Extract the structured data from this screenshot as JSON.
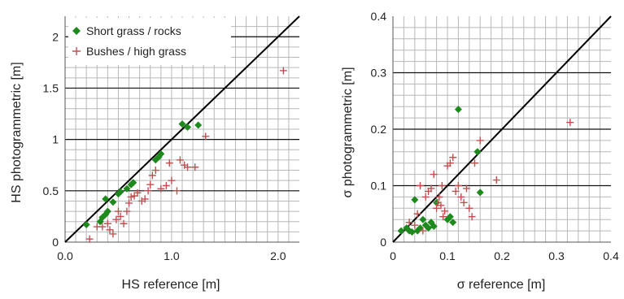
{
  "colors": {
    "short_grass": "#1e8a1e",
    "bushes": "#c05050",
    "minor_grid": "#b8b8b8",
    "major_grid": "#111111",
    "identity_line": "#000000"
  },
  "chart_data": [
    {
      "type": "scatter",
      "title": "",
      "xlabel": "HS reference [m]",
      "ylabel": "HS photogrammetric [m]",
      "xlim": [
        0,
        2.2
      ],
      "ylim": [
        0,
        2.2
      ],
      "x_ticks": [
        0,
        1,
        2
      ],
      "x_tick_labels": [
        "0.0",
        "1.0",
        "2.0"
      ],
      "y_ticks": [
        0,
        0.5,
        1,
        1.5,
        2
      ],
      "y_tick_labels": [
        "0",
        "0.5",
        "1",
        "1.5",
        "2"
      ],
      "minor_step": 0.1,
      "major_y": [
        0.5,
        1.0,
        1.5,
        2.0
      ],
      "grid": true,
      "legend": "top-left",
      "identity_line": true,
      "series": [
        {
          "name": "Short grass / rocks",
          "marker": "diamond",
          "color": "#1e8a1e",
          "points": [
            [
              0.2,
              0.17
            ],
            [
              0.33,
              0.2
            ],
            [
              0.35,
              0.24
            ],
            [
              0.38,
              0.27
            ],
            [
              0.4,
              0.3
            ],
            [
              0.38,
              0.42
            ],
            [
              0.45,
              0.39
            ],
            [
              0.5,
              0.47
            ],
            [
              0.52,
              0.49
            ],
            [
              0.58,
              0.52
            ],
            [
              0.62,
              0.56
            ],
            [
              0.64,
              0.58
            ],
            [
              0.85,
              0.8
            ],
            [
              0.88,
              0.83
            ],
            [
              0.9,
              0.86
            ],
            [
              1.1,
              1.15
            ],
            [
              1.15,
              1.12
            ],
            [
              1.25,
              1.14
            ]
          ]
        },
        {
          "name": "Bushes / high grass",
          "marker": "plus",
          "color": "#c05050",
          "points": [
            [
              0.23,
              0.03
            ],
            [
              0.3,
              0.15
            ],
            [
              0.35,
              0.15
            ],
            [
              0.4,
              0.18
            ],
            [
              0.42,
              0.12
            ],
            [
              0.45,
              0.08
            ],
            [
              0.48,
              0.22
            ],
            [
              0.5,
              0.3
            ],
            [
              0.52,
              0.25
            ],
            [
              0.55,
              0.18
            ],
            [
              0.58,
              0.3
            ],
            [
              0.6,
              0.38
            ],
            [
              0.62,
              0.44
            ],
            [
              0.65,
              0.45
            ],
            [
              0.68,
              0.48
            ],
            [
              0.72,
              0.4
            ],
            [
              0.75,
              0.42
            ],
            [
              0.78,
              0.5
            ],
            [
              0.8,
              0.56
            ],
            [
              0.82,
              0.65
            ],
            [
              0.85,
              0.7
            ],
            [
              0.9,
              0.52
            ],
            [
              0.95,
              0.55
            ],
            [
              0.98,
              0.77
            ],
            [
              1.0,
              0.6
            ],
            [
              1.05,
              0.5
            ],
            [
              1.08,
              0.8
            ],
            [
              1.12,
              0.75
            ],
            [
              1.15,
              0.73
            ],
            [
              1.22,
              0.73
            ],
            [
              1.32,
              1.03
            ],
            [
              2.05,
              1.67
            ]
          ]
        }
      ]
    },
    {
      "type": "scatter",
      "title": "",
      "xlabel": "σ reference [m]",
      "ylabel": "σ photogrammetric [m]",
      "xlim": [
        0,
        0.4
      ],
      "ylim": [
        0,
        0.4
      ],
      "x_ticks": [
        0,
        0.1,
        0.2,
        0.3,
        0.4
      ],
      "x_tick_labels": [
        "0",
        "0.1",
        "0.2",
        "0.3",
        "0.4"
      ],
      "y_ticks": [
        0,
        0.1,
        0.2,
        0.3,
        0.4
      ],
      "y_tick_labels": [
        "0",
        "0.1",
        "0.2",
        "0.3",
        "0.4"
      ],
      "minor_step": 0.02,
      "major_y": [
        0.1,
        0.2,
        0.3
      ],
      "grid": true,
      "legend": "",
      "identity_line": true,
      "series": [
        {
          "name": "",
          "marker": "diamond",
          "color": "#1e8a1e",
          "points": [
            [
              0.015,
              0.02
            ],
            [
              0.025,
              0.025
            ],
            [
              0.03,
              0.02
            ],
            [
              0.035,
              0.018
            ],
            [
              0.04,
              0.075
            ],
            [
              0.045,
              0.02
            ],
            [
              0.05,
              0.025
            ],
            [
              0.055,
              0.04
            ],
            [
              0.06,
              0.03
            ],
            [
              0.065,
              0.025
            ],
            [
              0.07,
              0.035
            ],
            [
              0.075,
              0.028
            ],
            [
              0.08,
              0.07
            ],
            [
              0.1,
              0.04
            ],
            [
              0.105,
              0.045
            ],
            [
              0.11,
              0.035
            ],
            [
              0.12,
              0.235
            ],
            [
              0.155,
              0.16
            ],
            [
              0.16,
              0.088
            ]
          ]
        },
        {
          "name": "",
          "marker": "plus",
          "color": "#c05050",
          "points": [
            [
              0.03,
              0.035
            ],
            [
              0.04,
              0.03
            ],
            [
              0.045,
              0.05
            ],
            [
              0.05,
              0.1
            ],
            [
              0.055,
              0.02
            ],
            [
              0.06,
              0.08
            ],
            [
              0.065,
              0.09
            ],
            [
              0.07,
              0.095
            ],
            [
              0.075,
              0.12
            ],
            [
              0.08,
              0.06
            ],
            [
              0.082,
              0.07
            ],
            [
              0.085,
              0.08
            ],
            [
              0.088,
              0.065
            ],
            [
              0.09,
              0.1
            ],
            [
              0.092,
              0.045
            ],
            [
              0.095,
              0.055
            ],
            [
              0.1,
              0.135
            ],
            [
              0.105,
              0.14
            ],
            [
              0.11,
              0.15
            ],
            [
              0.115,
              0.09
            ],
            [
              0.12,
              0.1
            ],
            [
              0.125,
              0.08
            ],
            [
              0.13,
              0.07
            ],
            [
              0.135,
              0.095
            ],
            [
              0.14,
              0.06
            ],
            [
              0.145,
              0.045
            ],
            [
              0.15,
              0.14
            ],
            [
              0.16,
              0.18
            ],
            [
              0.19,
              0.11
            ],
            [
              0.325,
              0.212
            ]
          ]
        }
      ]
    }
  ]
}
